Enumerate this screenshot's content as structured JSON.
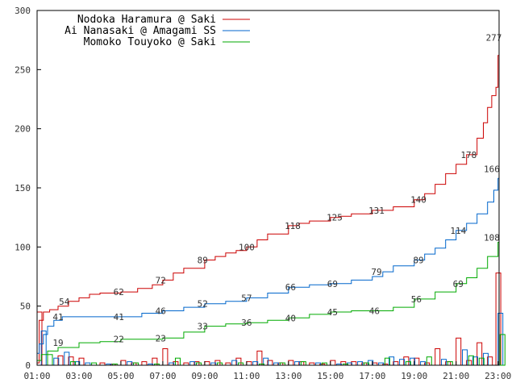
{
  "chart_data": {
    "type": "line",
    "xlabel": "",
    "ylabel": "",
    "xlim": [
      1.0,
      23.05
    ],
    "ylim": [
      0,
      300
    ],
    "grid": false,
    "legend_position": "top-left",
    "x_tick_labels": [
      {
        "x": 1,
        "label": "01:00"
      },
      {
        "x": 3,
        "label": "03:00"
      },
      {
        "x": 5,
        "label": "05:00"
      },
      {
        "x": 7,
        "label": "07:00"
      },
      {
        "x": 9,
        "label": "09:00"
      },
      {
        "x": 11,
        "label": "11:00"
      },
      {
        "x": 13,
        "label": "13:00"
      },
      {
        "x": 15,
        "label": "15:00"
      },
      {
        "x": 17,
        "label": "17:00"
      },
      {
        "x": 19,
        "label": "19:00"
      },
      {
        "x": 21,
        "label": "21:00"
      },
      {
        "x": 23,
        "label": "23:00"
      }
    ],
    "y_tick_labels": [
      {
        "y": 0,
        "label": "0"
      },
      {
        "y": 50,
        "label": "50"
      },
      {
        "y": 100,
        "label": "100"
      },
      {
        "y": 150,
        "label": "150"
      },
      {
        "y": 200,
        "label": "200"
      },
      {
        "y": 250,
        "label": "250"
      },
      {
        "y": 300,
        "label": "300"
      }
    ],
    "series": [
      {
        "name": "Nodoka Haramura @ Saki",
        "color": "#cc0000",
        "cumulative": [
          [
            1.0,
            2
          ],
          [
            1.1,
            38
          ],
          [
            1.3,
            45
          ],
          [
            1.6,
            47
          ],
          [
            2.0,
            50
          ],
          [
            2.5,
            54
          ],
          [
            3.0,
            57
          ],
          [
            3.5,
            60
          ],
          [
            4.0,
            61
          ],
          [
            5.0,
            62
          ],
          [
            5.8,
            65
          ],
          [
            6.5,
            68
          ],
          [
            7.0,
            72
          ],
          [
            7.5,
            78
          ],
          [
            8.0,
            82
          ],
          [
            9.0,
            89
          ],
          [
            9.5,
            92
          ],
          [
            10.0,
            95
          ],
          [
            10.5,
            97
          ],
          [
            11.0,
            100
          ],
          [
            11.5,
            106
          ],
          [
            12.0,
            111
          ],
          [
            13.0,
            118
          ],
          [
            13.5,
            120
          ],
          [
            14.0,
            122
          ],
          [
            15.0,
            125
          ],
          [
            15.5,
            126
          ],
          [
            16.0,
            128
          ],
          [
            17.0,
            131
          ],
          [
            18.0,
            134
          ],
          [
            19.0,
            140
          ],
          [
            19.5,
            145
          ],
          [
            20.0,
            153
          ],
          [
            20.5,
            162
          ],
          [
            21.0,
            170
          ],
          [
            21.5,
            178
          ],
          [
            22.0,
            192
          ],
          [
            22.3,
            205
          ],
          [
            22.5,
            218
          ],
          [
            22.7,
            228
          ],
          [
            22.9,
            235
          ],
          [
            23.0,
            262
          ],
          [
            23.05,
            277
          ]
        ],
        "labels": [
          {
            "x": 2.3,
            "y": 54,
            "text": "54"
          },
          {
            "x": 4.9,
            "y": 62,
            "text": "62"
          },
          {
            "x": 6.9,
            "y": 72,
            "text": "72"
          },
          {
            "x": 8.9,
            "y": 89,
            "text": "89"
          },
          {
            "x": 11.0,
            "y": 100,
            "text": "100"
          },
          {
            "x": 13.2,
            "y": 118,
            "text": "118"
          },
          {
            "x": 15.2,
            "y": 125,
            "text": "125"
          },
          {
            "x": 17.2,
            "y": 131,
            "text": "131"
          },
          {
            "x": 19.2,
            "y": 140,
            "text": "140"
          },
          {
            "x": 21.6,
            "y": 178,
            "text": "178"
          },
          {
            "x": 22.8,
            "y": 277,
            "text": "277"
          }
        ],
        "hourly_bars": [
          [
            1.0,
            45
          ],
          [
            2.0,
            8
          ],
          [
            2.5,
            7
          ],
          [
            3.0,
            6
          ],
          [
            4.0,
            2
          ],
          [
            4.5,
            1
          ],
          [
            5.0,
            4
          ],
          [
            5.5,
            2
          ],
          [
            6.0,
            3
          ],
          [
            6.5,
            6
          ],
          [
            7.0,
            14
          ],
          [
            7.5,
            3
          ],
          [
            8.0,
            2
          ],
          [
            8.5,
            3
          ],
          [
            9.0,
            3
          ],
          [
            9.5,
            4
          ],
          [
            10.0,
            2
          ],
          [
            10.5,
            6
          ],
          [
            11.0,
            3
          ],
          [
            11.5,
            12
          ],
          [
            12.0,
            4
          ],
          [
            12.5,
            2
          ],
          [
            13.0,
            4
          ],
          [
            13.5,
            3
          ],
          [
            14.0,
            2
          ],
          [
            14.5,
            1
          ],
          [
            15.0,
            4
          ],
          [
            15.5,
            3
          ],
          [
            16.0,
            3
          ],
          [
            16.5,
            2
          ],
          [
            17.0,
            2
          ],
          [
            17.5,
            1
          ],
          [
            18.0,
            3
          ],
          [
            18.5,
            7
          ],
          [
            19.0,
            6
          ],
          [
            19.5,
            2
          ],
          [
            20.0,
            14
          ],
          [
            20.5,
            3
          ],
          [
            21.0,
            23
          ],
          [
            21.5,
            4
          ],
          [
            22.0,
            19
          ],
          [
            22.5,
            7
          ],
          [
            22.9,
            78
          ]
        ]
      },
      {
        "name": "Ai Nanasaki @ Amagami SS",
        "color": "#0066cc",
        "cumulative": [
          [
            1.0,
            10
          ],
          [
            1.1,
            18
          ],
          [
            1.3,
            26
          ],
          [
            1.5,
            33
          ],
          [
            1.8,
            38
          ],
          [
            2.2,
            41
          ],
          [
            3.0,
            41
          ],
          [
            4.0,
            41
          ],
          [
            5.0,
            41
          ],
          [
            6.0,
            44
          ],
          [
            7.0,
            46
          ],
          [
            8.0,
            49
          ],
          [
            9.0,
            52
          ],
          [
            10.0,
            54
          ],
          [
            11.0,
            57
          ],
          [
            12.0,
            61
          ],
          [
            13.0,
            66
          ],
          [
            14.0,
            68
          ],
          [
            15.0,
            69
          ],
          [
            16.0,
            72
          ],
          [
            17.0,
            75
          ],
          [
            17.5,
            79
          ],
          [
            18.0,
            84
          ],
          [
            19.0,
            89
          ],
          [
            19.5,
            94
          ],
          [
            20.0,
            99
          ],
          [
            20.5,
            106
          ],
          [
            21.0,
            114
          ],
          [
            21.5,
            120
          ],
          [
            22.0,
            128
          ],
          [
            22.5,
            138
          ],
          [
            22.8,
            148
          ],
          [
            23.0,
            158
          ],
          [
            23.05,
            166
          ]
        ],
        "labels": [
          {
            "x": 2.0,
            "y": 41,
            "text": "41"
          },
          {
            "x": 4.9,
            "y": 41,
            "text": "41"
          },
          {
            "x": 6.9,
            "y": 46,
            "text": "46"
          },
          {
            "x": 8.9,
            "y": 52,
            "text": "52"
          },
          {
            "x": 11.0,
            "y": 57,
            "text": "57"
          },
          {
            "x": 13.1,
            "y": 66,
            "text": "66"
          },
          {
            "x": 15.1,
            "y": 69,
            "text": "69"
          },
          {
            "x": 17.2,
            "y": 79,
            "text": "79"
          },
          {
            "x": 19.2,
            "y": 89,
            "text": "89"
          },
          {
            "x": 21.1,
            "y": 114,
            "text": "114"
          },
          {
            "x": 22.7,
            "y": 166,
            "text": "166"
          }
        ],
        "hourly_bars": [
          [
            1.2,
            29
          ],
          [
            1.8,
            6
          ],
          [
            2.3,
            11
          ],
          [
            2.8,
            3
          ],
          [
            3.3,
            2
          ],
          [
            4.3,
            1
          ],
          [
            5.3,
            3
          ],
          [
            6.3,
            1
          ],
          [
            7.3,
            2
          ],
          [
            8.3,
            3
          ],
          [
            9.3,
            2
          ],
          [
            10.3,
            4
          ],
          [
            11.3,
            3
          ],
          [
            11.8,
            6
          ],
          [
            12.3,
            2
          ],
          [
            13.3,
            3
          ],
          [
            14.3,
            2
          ],
          [
            15.3,
            1
          ],
          [
            15.8,
            2
          ],
          [
            16.3,
            3
          ],
          [
            16.8,
            4
          ],
          [
            17.3,
            2
          ],
          [
            17.8,
            7
          ],
          [
            18.3,
            5
          ],
          [
            18.8,
            6
          ],
          [
            19.3,
            3
          ],
          [
            20.3,
            5
          ],
          [
            21.3,
            13
          ],
          [
            21.8,
            7
          ],
          [
            22.3,
            10
          ],
          [
            23.0,
            44
          ]
        ]
      },
      {
        "name": "Momoko Touyoko @ Saki",
        "color": "#00aa00",
        "cumulative": [
          [
            1.0,
            4
          ],
          [
            1.2,
            9
          ],
          [
            1.5,
            12
          ],
          [
            2.0,
            15
          ],
          [
            3.0,
            19
          ],
          [
            4.0,
            20
          ],
          [
            5.0,
            22
          ],
          [
            6.0,
            22
          ],
          [
            7.0,
            23
          ],
          [
            8.0,
            28
          ],
          [
            9.0,
            33
          ],
          [
            10.0,
            35
          ],
          [
            11.0,
            36
          ],
          [
            12.0,
            38
          ],
          [
            13.0,
            40
          ],
          [
            14.0,
            43
          ],
          [
            15.0,
            45
          ],
          [
            16.0,
            46
          ],
          [
            17.0,
            46
          ],
          [
            18.0,
            49
          ],
          [
            19.0,
            56
          ],
          [
            20.0,
            62
          ],
          [
            21.0,
            69
          ],
          [
            21.5,
            74
          ],
          [
            22.0,
            82
          ],
          [
            22.5,
            92
          ],
          [
            23.0,
            104
          ],
          [
            23.05,
            108
          ]
        ],
        "labels": [
          {
            "x": 2.0,
            "y": 19,
            "text": "19"
          },
          {
            "x": 4.9,
            "y": 22,
            "text": "22"
          },
          {
            "x": 6.9,
            "y": 23,
            "text": "23"
          },
          {
            "x": 8.9,
            "y": 33,
            "text": "33"
          },
          {
            "x": 11.0,
            "y": 36,
            "text": "36"
          },
          {
            "x": 13.1,
            "y": 40,
            "text": "40"
          },
          {
            "x": 15.1,
            "y": 45,
            "text": "45"
          },
          {
            "x": 17.1,
            "y": 46,
            "text": "46"
          },
          {
            "x": 19.1,
            "y": 56,
            "text": "56"
          },
          {
            "x": 21.1,
            "y": 69,
            "text": "69"
          },
          {
            "x": 22.7,
            "y": 108,
            "text": "108"
          }
        ],
        "hourly_bars": [
          [
            1.5,
            9
          ],
          [
            2.6,
            3
          ],
          [
            3.6,
            2
          ],
          [
            4.6,
            1
          ],
          [
            5.6,
            2
          ],
          [
            6.6,
            1
          ],
          [
            7.6,
            6
          ],
          [
            8.6,
            2
          ],
          [
            9.6,
            2
          ],
          [
            10.6,
            2
          ],
          [
            11.6,
            1
          ],
          [
            12.6,
            2
          ],
          [
            13.6,
            3
          ],
          [
            14.6,
            2
          ],
          [
            15.6,
            1
          ],
          [
            16.6,
            2
          ],
          [
            17.6,
            6
          ],
          [
            18.6,
            3
          ],
          [
            19.6,
            7
          ],
          [
            20.6,
            3
          ],
          [
            21.6,
            8
          ],
          [
            22.1,
            6
          ],
          [
            23.1,
            26
          ]
        ]
      }
    ]
  }
}
